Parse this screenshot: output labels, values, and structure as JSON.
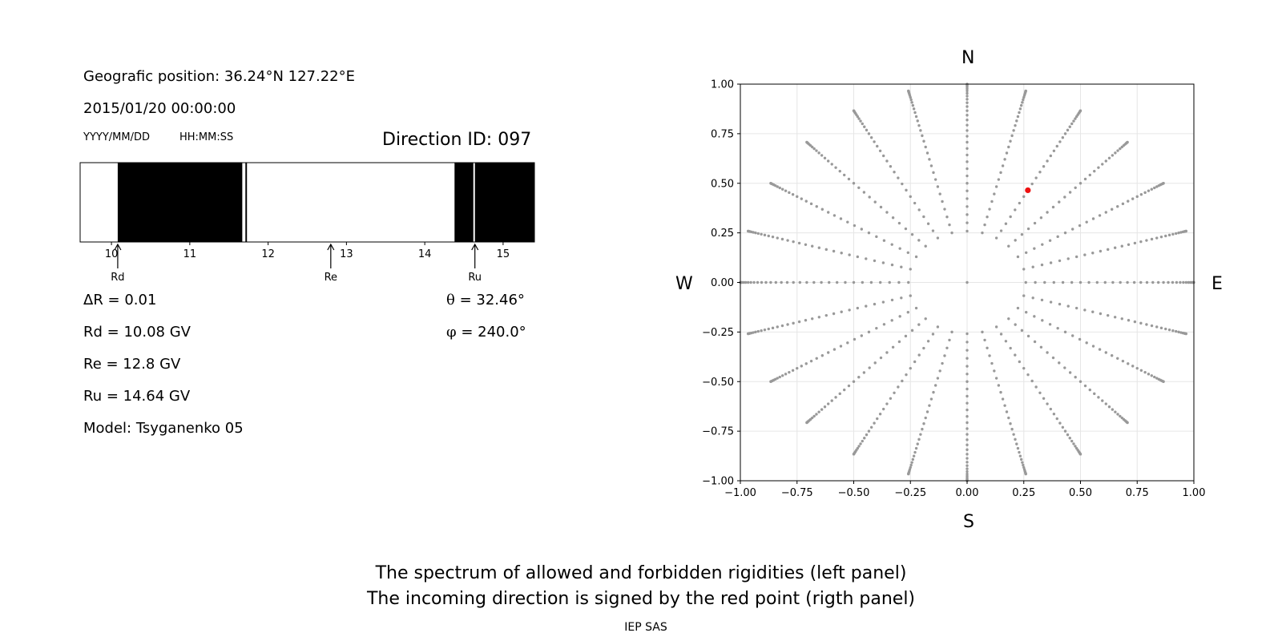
{
  "left_panel": {
    "position_label": "Geografic position: 36.24°N 127.22°E",
    "datetime": "2015/01/20 00:00:00",
    "date_format": "YYYY/MM/DD",
    "time_format": "HH:MM:SS",
    "direction_id": "Direction ID: 097",
    "delta_r": "ΔR = 0.01",
    "rd": "Rd = 10.08 GV",
    "re": "Re = 12.8 GV",
    "ru": "Ru = 14.64 GV",
    "model": "Model: Tsyganenko 05",
    "theta_symbol": "θ",
    "theta_value": " = 32.46°",
    "phi_symbol": "φ",
    "phi_value": " = 240.0°"
  },
  "right_panel": {
    "north": "N",
    "south": "S",
    "west": "W",
    "east": "E"
  },
  "caption": {
    "line1": "The spectrum of allowed and forbidden rigidities (left panel)",
    "line2": "The incoming direction is signed by the red point (rigth panel)",
    "credit": "IEP SAS"
  },
  "colors": {
    "forbidden": "#000000",
    "allowed": "#ffffff",
    "grid_points": "#999999",
    "selected_point": "#ee1111"
  },
  "chart_data": [
    {
      "type": "bar",
      "name": "rigidity-spectrum",
      "xlim": [
        9.6,
        15.4
      ],
      "xticks": [
        10,
        11,
        12,
        13,
        14,
        15
      ],
      "forbidden_intervals": [
        [
          10.08,
          11.67
        ],
        [
          11.71,
          11.73
        ],
        [
          14.38,
          14.62
        ],
        [
          14.64,
          15.4
        ]
      ],
      "markers": [
        {
          "label": "Rd",
          "x": 10.08
        },
        {
          "label": "Re",
          "x": 12.8
        },
        {
          "label": "Ru",
          "x": 14.64
        }
      ]
    },
    {
      "type": "scatter",
      "name": "incoming-directions",
      "xlim": [
        -1.0,
        1.0
      ],
      "ylim": [
        -1.0,
        1.0
      ],
      "xticks": [
        -1.0,
        -0.75,
        -0.5,
        -0.25,
        0.0,
        0.25,
        0.5,
        0.75,
        1.0
      ],
      "yticks": [
        -1.0,
        -0.75,
        -0.5,
        -0.25,
        0.0,
        0.25,
        0.5,
        0.75,
        1.0
      ],
      "tick_labels": [
        "−1.00",
        "−0.75",
        "−0.50",
        "−0.25",
        "0.00",
        "0.25",
        "0.50",
        "0.75",
        "1.00"
      ],
      "grid": true,
      "grid_points": {
        "azimuths_deg": [
          0,
          15,
          30,
          45,
          60,
          75,
          90,
          105,
          120,
          135,
          150,
          165,
          180,
          195,
          210,
          225,
          240,
          255,
          270,
          285,
          300,
          315,
          330,
          345
        ],
        "zenith_step_deg": 2.5,
        "zenith_start_deg": 15,
        "zenith_end_deg": 90,
        "projection": "sin(zenith)",
        "center_point": [
          0,
          0
        ]
      },
      "selected_point": {
        "x": 0.268,
        "y": 0.465,
        "theta_deg": 32.46,
        "phi_deg": 240.0
      }
    }
  ]
}
